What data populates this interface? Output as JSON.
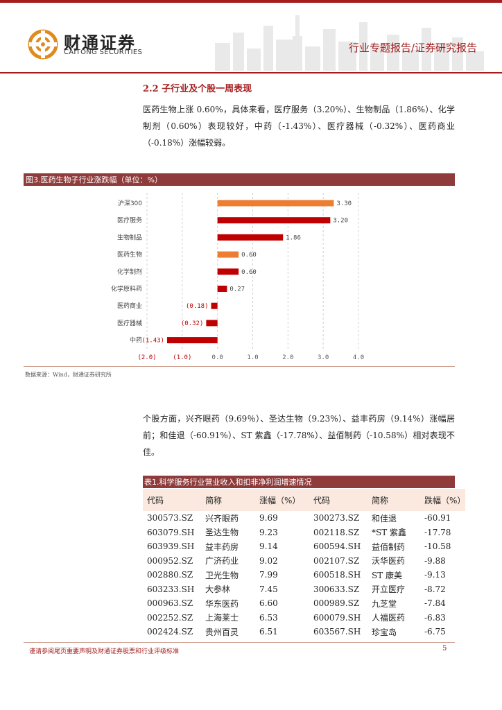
{
  "header": {
    "logo_cn": "财通证券",
    "logo_en": "CAITONG SECURITIES",
    "report_type": "行业专题报告/证券研究报告"
  },
  "section": {
    "title": "2.2  子行业及个股一周表现",
    "para1": "医药生物上涨 0.60%，具体来看，医疗服务（3.20%）、生物制品（1.86%）、化学制剂（0.60%）表现较好，中药（-1.43%）、医疗器械（-0.32%）、医药商业（-0.18%）涨幅较弱。",
    "para2": "个股方面，兴齐眼药（9.69％）、圣达生物（9.23%）、益丰药房（9.14%）涨幅居前；和佳退（-60.91%）、ST 紫鑫（-17.78%）、益佰制药（-10.58%）相对表现不佳。"
  },
  "figure": {
    "title": "图3.医药生物子行业涨跌幅（单位：%）",
    "source": "数据来源：Wind，财通证券研究所"
  },
  "chart_data": {
    "type": "bar",
    "orientation": "horizontal",
    "categories": [
      "沪深300",
      "医疗服务",
      "生物制品",
      "医药生物",
      "化学制剂",
      "化学原料药",
      "医药商业",
      "医疗器械",
      "中药"
    ],
    "values": [
      3.3,
      3.2,
      1.86,
      0.6,
      0.6,
      0.27,
      -0.18,
      -0.32,
      -1.43
    ],
    "data_labels": [
      "3.30",
      "3.20",
      "1.86",
      "0.60",
      "0.60",
      "0.27",
      "(0.18)",
      "(0.32)",
      "(1.43)"
    ],
    "bar_colors": [
      "#ed7d31",
      "#c00000",
      "#c00000",
      "#ed7d31",
      "#c00000",
      "#c00000",
      "#c00000",
      "#c00000",
      "#c00000"
    ],
    "x_ticks": [
      "(2.0)",
      "(1.0)",
      "0.0",
      "1.0",
      "2.0",
      "3.0",
      "4.0"
    ],
    "xlim": [
      -2.0,
      4.0
    ],
    "grid": "vertical dashed",
    "legend": "none"
  },
  "table": {
    "title": "表1.科学服务行业营业收入和扣非净利润增速情况",
    "headers": [
      "代码",
      "简称",
      "涨幅（%）",
      "代码",
      "简称",
      "跌幅（%）"
    ],
    "rows": [
      [
        "300573.SZ",
        "兴齐眼药",
        "9.69",
        "300273.SZ",
        "和佳退",
        "-60.91"
      ],
      [
        "603079.SH",
        "圣达生物",
        "9.23",
        "002118.SZ",
        "*ST 紫鑫",
        "-17.78"
      ],
      [
        "603939.SH",
        "益丰药房",
        "9.14",
        "600594.SH",
        "益佰制药",
        "-10.58"
      ],
      [
        "000952.SZ",
        "广济药业",
        "9.02",
        "002107.SZ",
        "沃华医药",
        "-9.88"
      ],
      [
        "002880.SZ",
        "卫光生物",
        "7.99",
        "600518.SH",
        "ST 康美",
        "-9.13"
      ],
      [
        "603233.SH",
        "大参林",
        "7.45",
        "300633.SZ",
        "开立医疗",
        "-8.72"
      ],
      [
        "000963.SZ",
        "华东医药",
        "6.60",
        "000989.SZ",
        "九芝堂",
        "-7.84"
      ],
      [
        "002252.SZ",
        "上海莱士",
        "6.53",
        "600079.SH",
        "人福医药",
        "-6.83"
      ],
      [
        "002424.SZ",
        "贵州百灵",
        "6.51",
        "603567.SH",
        "珍宝岛",
        "-6.75"
      ]
    ]
  },
  "footer": {
    "disclaimer": "谨请参阅尾页重要声明及财通证券股票和行业评级标准",
    "page_number": "5"
  },
  "colors": {
    "brand_red": "#a51d1d",
    "bar_red": "#c00000",
    "bar_orange": "#ed7d31",
    "title_bar": "#8f3b3b"
  }
}
